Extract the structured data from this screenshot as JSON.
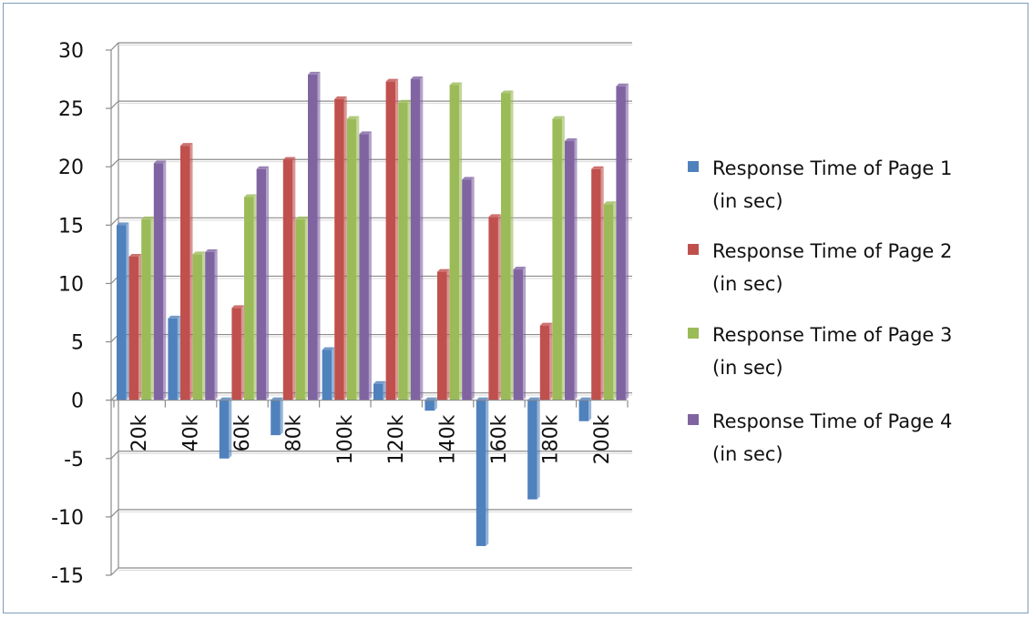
{
  "chart_data": {
    "type": "bar",
    "title": "",
    "xlabel": "",
    "ylabel": "",
    "ylim": [
      -15,
      30
    ],
    "yticks": [
      30,
      25,
      20,
      15,
      10,
      5,
      0,
      -5,
      -10,
      -15
    ],
    "categories": [
      "20k",
      "40k",
      "60k",
      "80k",
      "100k",
      "120k",
      "140k",
      "160k",
      "180k",
      "200k"
    ],
    "legend_position": "right",
    "grid": true,
    "series": [
      {
        "name": "Response Time of Page 1 (in sec)",
        "color": "#4f81bd",
        "values": [
          15,
          7,
          -5,
          -3,
          4.3,
          1.4,
          -0.9,
          -12.5,
          -8.5,
          -1.8
        ]
      },
      {
        "name": "Response Time of Page 2 (in sec)",
        "color": "#c0504d",
        "values": [
          12.3,
          21.8,
          7.9,
          20.6,
          25.8,
          27.3,
          11,
          15.7,
          6.4,
          19.8
        ]
      },
      {
        "name": "Response Time of Page 3 (in sec)",
        "color": "#9bbb59",
        "values": [
          15.5,
          12.5,
          17.4,
          15.5,
          24.1,
          25.5,
          27,
          26.3,
          24.1,
          16.8
        ]
      },
      {
        "name": "Response Time of Page 4 (in sec)",
        "color": "#8064a2",
        "values": [
          20.3,
          12.7,
          19.8,
          27.9,
          22.8,
          27.5,
          18.9,
          11.2,
          22.2,
          26.9
        ]
      }
    ]
  },
  "legend": {
    "entries": [
      {
        "line1": "Response Time of Page 1",
        "line2": "(in sec)"
      },
      {
        "line1": "Response Time of Page 2",
        "line2": "(in sec)"
      },
      {
        "line1": "Response Time of Page 3",
        "line2": "(in sec)"
      },
      {
        "line1": "Response Time of Page 4",
        "line2": "(in sec)"
      }
    ]
  }
}
